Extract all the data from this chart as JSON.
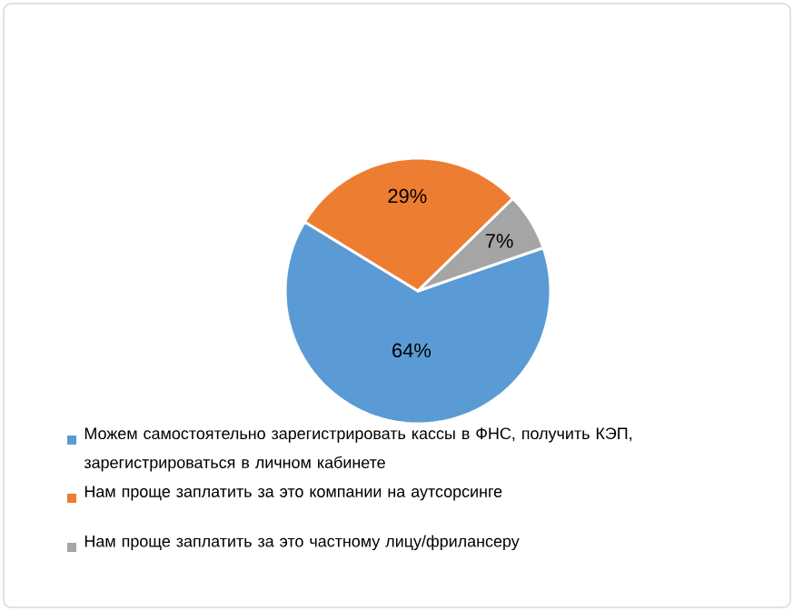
{
  "chart_data": {
    "type": "pie",
    "categories": [
      "Можем самостоятельно зарегистрировать кассы в ФНС, получить КЭП, зарегистрироваться в личном кабинете",
      "Нам проще заплатить за это компании на аутсорсинге",
      "Нам проще заплатить за это частному лицу/фрилансеру"
    ],
    "values": [
      64,
      29,
      7
    ],
    "colors": [
      "#5b9bd5",
      "#ed7d31",
      "#a5a5a5"
    ],
    "value_labels": [
      "64%",
      "29%",
      "7%"
    ],
    "legend": "bottom"
  }
}
